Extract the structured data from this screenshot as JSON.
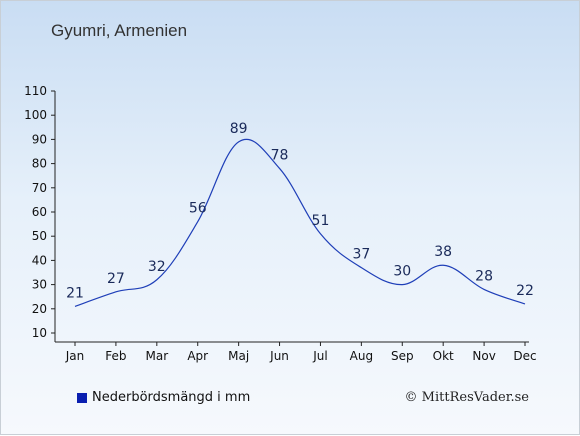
{
  "title": "Gyumri, Armenien",
  "legend_label": "Nederbördsmängd i mm",
  "copyright": "© MittResVader.se",
  "colors": {
    "line": "#1f3fb8",
    "swatch": "#0a1fb0",
    "label": "#1a2a5a"
  },
  "chart_data": {
    "type": "line",
    "categories": [
      "Jan",
      "Feb",
      "Mar",
      "Apr",
      "Maj",
      "Jun",
      "Jul",
      "Aug",
      "Sep",
      "Okt",
      "Nov",
      "Dec"
    ],
    "series": [
      {
        "name": "Nederbördsmängd i mm",
        "values": [
          21,
          27,
          32,
          56,
          89,
          78,
          51,
          37,
          30,
          38,
          28,
          22
        ]
      }
    ],
    "ylim": [
      10,
      110
    ],
    "yticks": [
      10,
      20,
      30,
      40,
      50,
      60,
      70,
      80,
      90,
      100,
      110
    ],
    "grid": false,
    "legend": "bottom-left"
  }
}
